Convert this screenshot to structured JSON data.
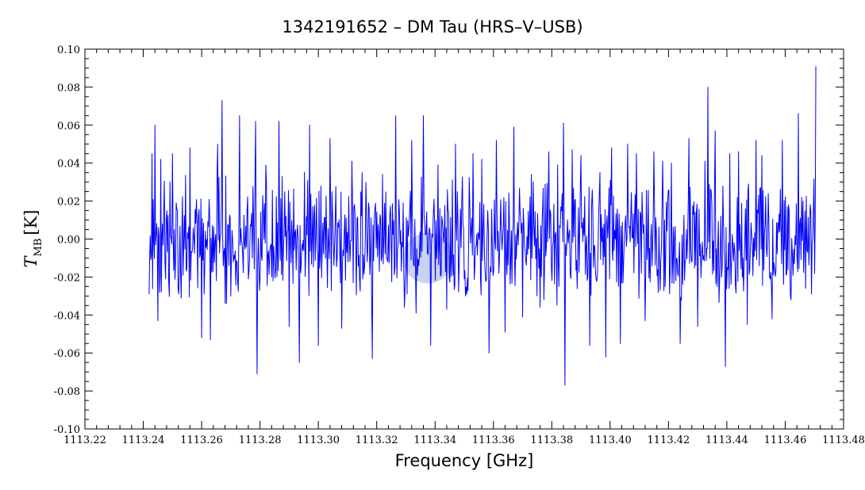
{
  "chart_data": {
    "type": "line",
    "title": "1342191652 – DM Tau (HRS–V–USB)",
    "xlabel": "Frequency [GHz]",
    "ylabel": {
      "symbol": "T",
      "subscript": "MB",
      "unit": "[K]"
    },
    "xlim": [
      1113.22,
      1113.48
    ],
    "ylim": [
      -0.1,
      0.1
    ],
    "x_ticks": [
      "1113.22",
      "1113.24",
      "1113.26",
      "1113.28",
      "1113.30",
      "1113.32",
      "1113.34",
      "1113.36",
      "1113.38",
      "1113.40",
      "1113.42",
      "1113.44",
      "1113.46",
      "1113.48"
    ],
    "y_ticks": [
      "-0.10",
      "-0.08",
      "-0.06",
      "-0.04",
      "-0.02",
      "0.00",
      "0.02",
      "0.04",
      "0.06",
      "0.08",
      "0.10"
    ],
    "grid": false,
    "line_color": "#0000ff",
    "highlight": {
      "x": 1113.3375,
      "y": -0.01,
      "color": "#4060c0"
    },
    "series": [
      {
        "x": [
          1113.242,
          1113.243,
          1113.244,
          1113.245,
          1113.246,
          1113.247,
          1113.25,
          1113.253,
          1113.256,
          1113.26,
          1113.263,
          1113.2655,
          1113.267,
          1113.27,
          1113.273,
          1113.276,
          1113.2785,
          1113.279,
          1113.282,
          1113.2865,
          1113.29,
          1113.2935,
          1113.297,
          1113.3,
          1113.304,
          1113.308,
          1113.3115,
          1113.315,
          1113.3185,
          1113.322,
          1113.3265,
          1113.3295,
          1113.332,
          1113.3335,
          1113.336,
          1113.3385,
          1113.341,
          1113.344,
          1113.347,
          1113.35,
          1113.353,
          1113.356,
          1113.3585,
          1113.361,
          1113.364,
          1113.367,
          1113.37,
          1113.373,
          1113.376,
          1113.379,
          1113.382,
          1113.384,
          1113.3845,
          1113.387,
          1113.39,
          1113.393,
          1113.3965,
          1113.3985,
          1113.4005,
          1113.4035,
          1113.406,
          1113.409,
          1113.412,
          1113.415,
          1113.418,
          1113.421,
          1113.424,
          1113.427,
          1113.43,
          1113.4325,
          1113.4335,
          1113.436,
          1113.4395,
          1113.441,
          1113.444,
          1113.447,
          1113.45,
          1113.452,
          1113.4555,
          1113.459,
          1113.462,
          1113.4645,
          1113.467,
          1113.469,
          1113.4705
        ],
        "y": [
          -0.029,
          0.045,
          0.06,
          -0.043,
          0.042,
          0.015,
          0.045,
          -0.031,
          0.048,
          -0.052,
          -0.053,
          0.05,
          0.073,
          -0.03,
          0.065,
          -0.021,
          0.062,
          -0.071,
          0.039,
          0.062,
          -0.046,
          -0.065,
          0.06,
          -0.056,
          0.053,
          -0.047,
          0.041,
          0.035,
          -0.063,
          0.034,
          0.065,
          -0.036,
          0.052,
          -0.039,
          0.065,
          -0.056,
          0.039,
          -0.037,
          0.05,
          -0.021,
          0.045,
          0.042,
          -0.06,
          0.052,
          -0.049,
          0.059,
          -0.041,
          0.034,
          -0.036,
          0.046,
          0.039,
          0.061,
          -0.077,
          0.047,
          0.044,
          -0.056,
          0.035,
          -0.062,
          0.048,
          -0.055,
          0.05,
          0.045,
          -0.043,
          0.046,
          0.041,
          0.04,
          -0.055,
          0.053,
          -0.046,
          0.041,
          0.08,
          0.057,
          -0.067,
          0.045,
          0.046,
          -0.045,
          0.052,
          0.044,
          -0.042,
          0.052,
          -0.032,
          0.066,
          -0.026,
          -0.029,
          0.091
        ]
      }
    ]
  }
}
